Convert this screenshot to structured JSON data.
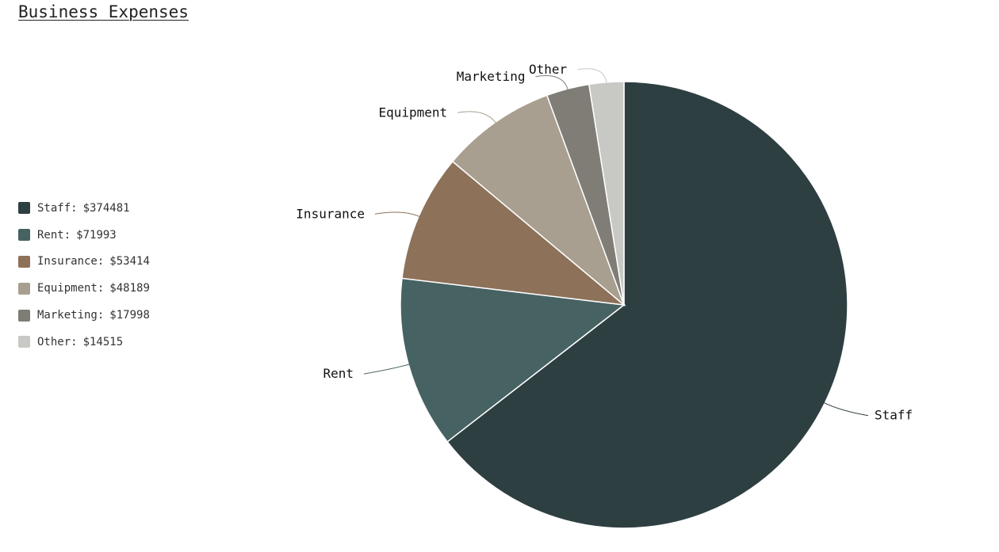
{
  "chart_data": {
    "type": "pie",
    "title": "Business Expenses",
    "legend_position": "left",
    "currency": "$",
    "slices": [
      {
        "label": "Staff",
        "value": 374481,
        "color": "#2e3f42"
      },
      {
        "label": "Rent",
        "value": 71993,
        "color": "#476262"
      },
      {
        "label": "Insurance",
        "value": 53414,
        "color": "#8d7159"
      },
      {
        "label": "Equipment",
        "value": 48189,
        "color": "#a89f90"
      },
      {
        "label": "Marketing",
        "value": 17998,
        "color": "#807d77"
      },
      {
        "label": "Other",
        "value": 14515,
        "color": "#c8c8c4"
      }
    ]
  }
}
